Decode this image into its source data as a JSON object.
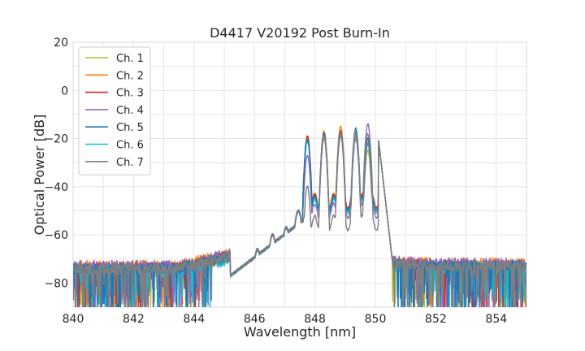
{
  "chart_data": {
    "type": "line",
    "title": "D4417 V20192 Post Burn-In",
    "xlabel": "Wavelength [nm]",
    "ylabel": "Optical Power [dB]",
    "xlim": [
      840,
      855
    ],
    "ylim": [
      -90,
      20
    ],
    "xticks": [
      "840",
      "842",
      "844",
      "846",
      "848",
      "850",
      "852",
      "854"
    ],
    "yticks": [
      "20",
      "0",
      "−20",
      "−40",
      "−60",
      "−80"
    ],
    "grid": true,
    "legend_position": "top-left",
    "series": [
      {
        "name": "Ch. 1",
        "color": "#bcbd22",
        "peaks": [
          -19,
          -18,
          -17,
          -19,
          -25
        ],
        "edge_fill": -31,
        "noise_floor": -74
      },
      {
        "name": "Ch. 2",
        "color": "#ff7f0e",
        "peaks": [
          -20,
          -17,
          -15,
          -20,
          -22
        ],
        "edge_fill": -32,
        "noise_floor": -73
      },
      {
        "name": "Ch. 3",
        "color": "#d62728",
        "peaks": [
          -19,
          -18,
          -17,
          -18,
          -22
        ],
        "edge_fill": -31,
        "noise_floor": -74
      },
      {
        "name": "Ch. 4",
        "color": "#9467bd",
        "peaks": [
          -27,
          -20,
          -19,
          -20,
          -14
        ],
        "edge_fill": -35,
        "noise_floor": -73
      },
      {
        "name": "Ch. 5",
        "color": "#1f77b4",
        "peaks": [
          -20,
          -18,
          -17,
          -16,
          -20
        ],
        "edge_fill": -32,
        "noise_floor": -74
      },
      {
        "name": "Ch. 6",
        "color": "#17becf",
        "peaks": [
          -21,
          -19,
          -18,
          -18,
          -22
        ],
        "edge_fill": -33,
        "noise_floor": -75
      },
      {
        "name": "Ch. 7",
        "color": "#7f7f7f",
        "peaks": [
          -40,
          -19,
          -18,
          -17,
          -18
        ],
        "edge_fill": -40,
        "noise_floor": -74
      }
    ],
    "side_peaks_nm": [
      846.1,
      846.6,
      847.05,
      847.45
    ],
    "side_peaks_db": [
      -63,
      -57,
      -54,
      -47
    ],
    "main_peaks_nm": [
      847.75,
      848.3,
      848.85,
      849.35,
      849.75
    ]
  }
}
